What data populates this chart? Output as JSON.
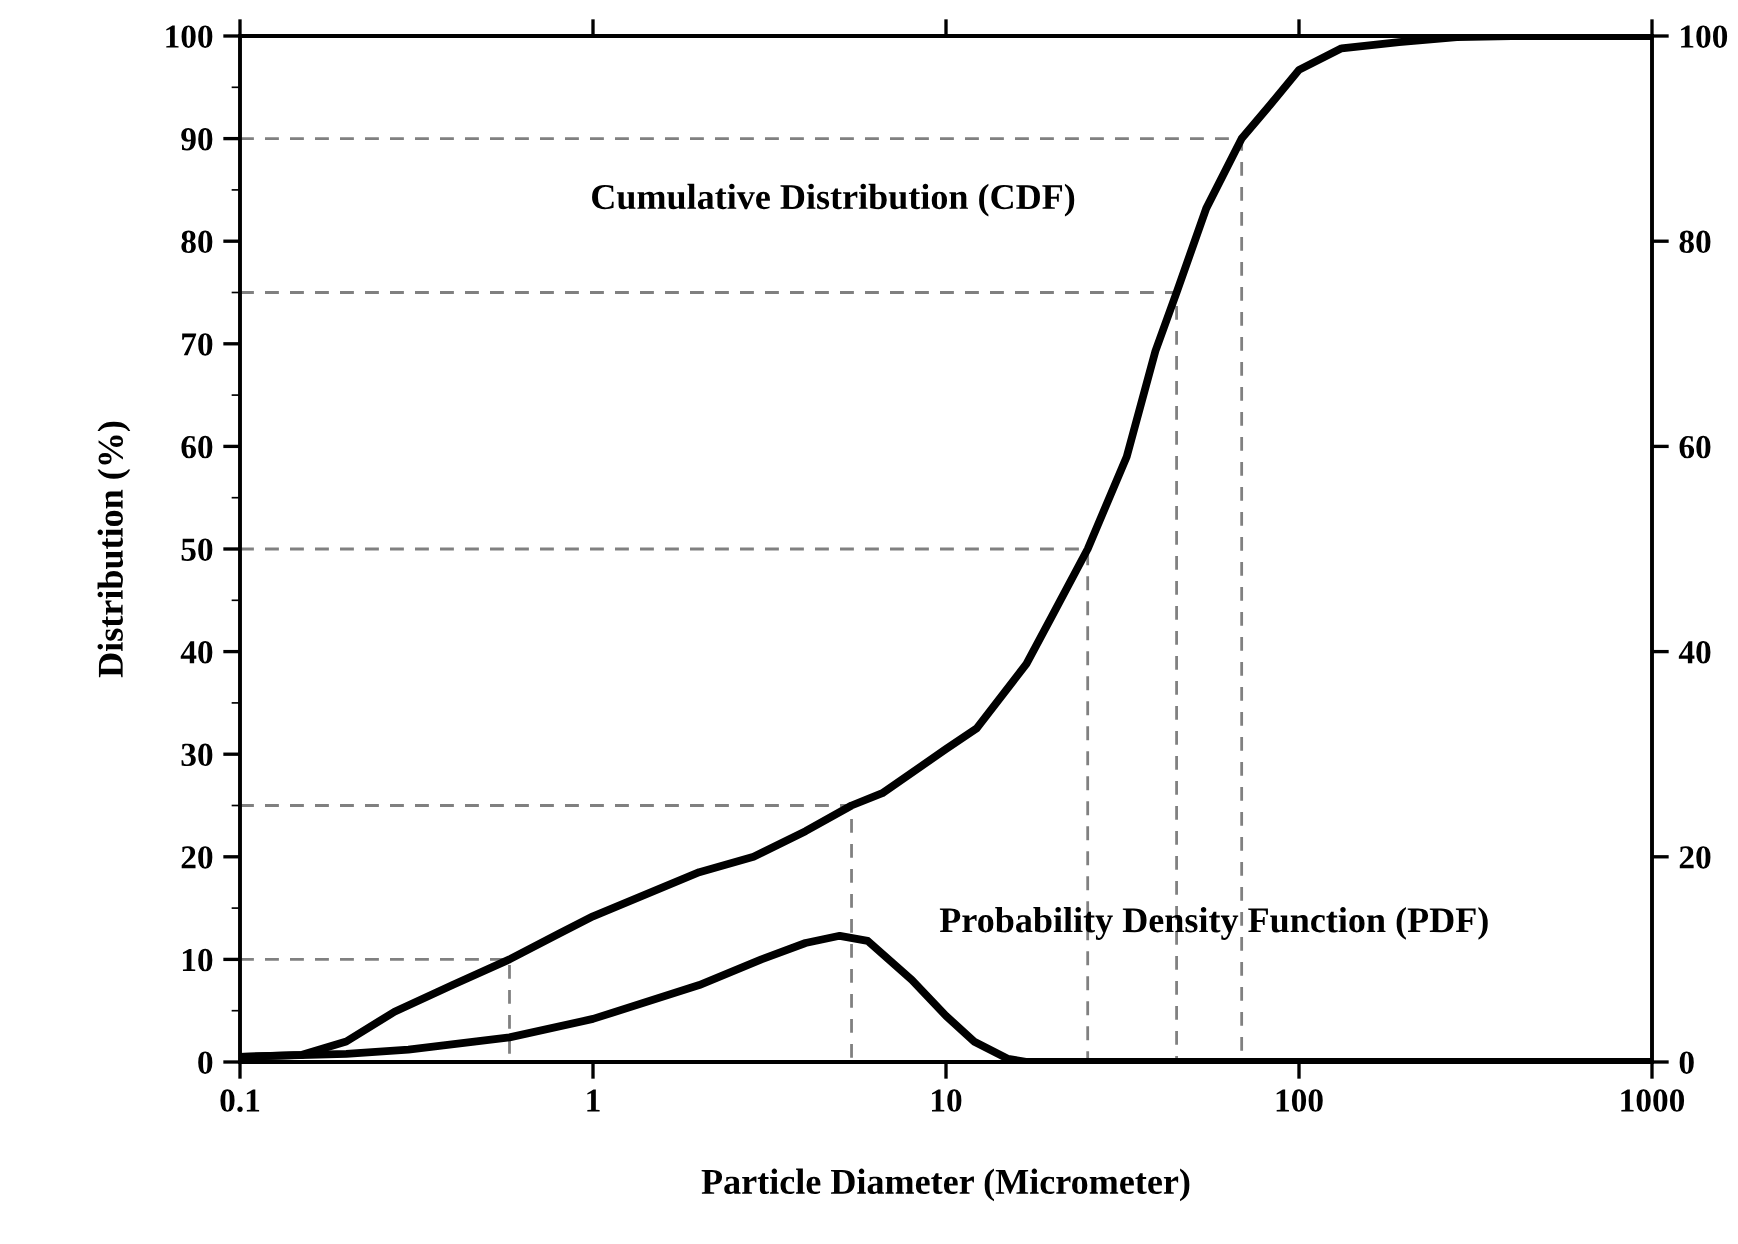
{
  "chart_data": {
    "type": "line",
    "xlabel": "Particle Diameter (Micrometer)",
    "ylabel": "Distribution (%)",
    "log": "x",
    "xlim": [
      0.1,
      1000
    ],
    "xticks": [
      0.1,
      1,
      10,
      100,
      1000
    ],
    "ylim": [
      0,
      100
    ],
    "yticks": [
      0,
      10,
      20,
      30,
      40,
      50,
      60,
      70,
      80,
      90,
      100
    ],
    "y2lim": [
      0,
      100
    ],
    "y2ticks": [
      0,
      20,
      40,
      60,
      80,
      100
    ],
    "grid": false,
    "legend": false,
    "marker": "none",
    "series": [
      {
        "color": "#000000",
        "line_style": "solid",
        "x": [
          0.1,
          0.15,
          0.2,
          0.274,
          0.4,
          0.58,
          0.8,
          1,
          2,
          2.85,
          4,
          5.4,
          6.6,
          10,
          12.2,
          16.9,
          20,
          25.2,
          32.5,
          39.2,
          45,
          54.6,
          68.8,
          82.9,
          100,
          132,
          192,
          280,
          400,
          1000
        ],
        "values": [
          0.5,
          0.7,
          2,
          4.9,
          7.5,
          10,
          12.5,
          14.2,
          18.5,
          20,
          22.5,
          25,
          26.2,
          30.5,
          32.5,
          38.8,
          43.5,
          50,
          59,
          69.3,
          75,
          83.2,
          90,
          93.3,
          96.7,
          98.8,
          99.4,
          99.9,
          100,
          100
        ]
      },
      {
        "color": "#000000",
        "line_style": "solid",
        "x": [
          0.1,
          0.2,
          0.3,
          0.58,
          1,
          2,
          3,
          4,
          5,
          6,
          8,
          10,
          12,
          15,
          17,
          20,
          100,
          1000
        ],
        "values": [
          0.5,
          0.8,
          1.2,
          2.4,
          4.2,
          7.5,
          10,
          11.6,
          12.3,
          11.8,
          8,
          4.5,
          2,
          0.3,
          0,
          0,
          0,
          0
        ]
      },
      {
        "color": "#808080",
        "line_style": "dashed",
        "x": [
          0.1,
          0.58,
          0.58
        ],
        "values": [
          10,
          10,
          0
        ]
      },
      {
        "color": "#808080",
        "line_style": "dashed",
        "x": [
          0.1,
          5.4,
          5.4
        ],
        "values": [
          25,
          25,
          0
        ]
      },
      {
        "color": "#808080",
        "line_style": "dashed",
        "x": [
          0.1,
          25.2,
          25.2
        ],
        "values": [
          50,
          50,
          0
        ]
      },
      {
        "color": "#808080",
        "line_style": "dashed",
        "x": [
          0.1,
          45,
          45
        ],
        "values": [
          75,
          75,
          0
        ]
      },
      {
        "color": "#808080",
        "line_style": "dashed",
        "x": [
          0.1,
          68.8,
          68.8
        ],
        "values": [
          90,
          90,
          0
        ]
      }
    ],
    "annotations": [
      "Cumulative Distribution (CDF)",
      "Probability Density Function (PDF)"
    ]
  }
}
